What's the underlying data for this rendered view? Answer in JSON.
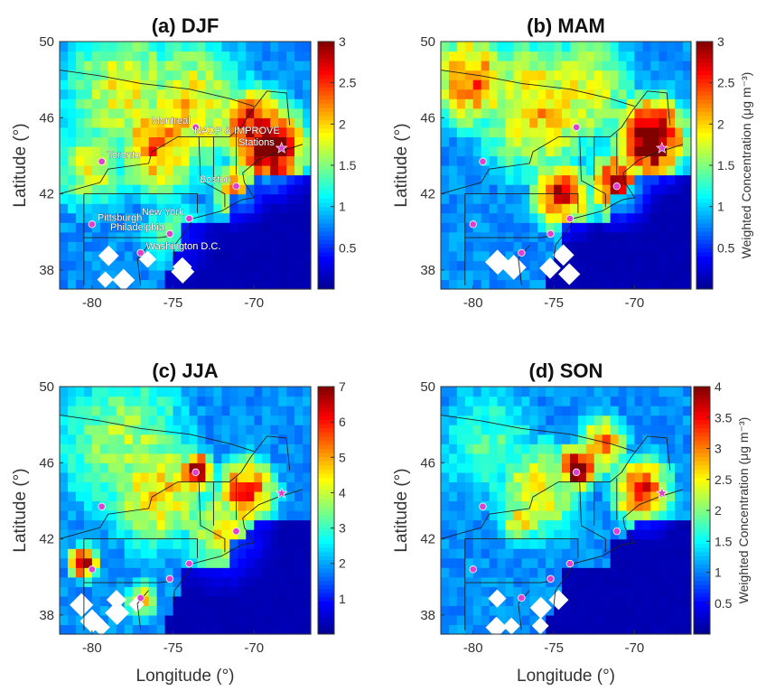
{
  "chart_data": [
    {
      "type": "heatmap",
      "title": "(a) DJF",
      "xlabel": "",
      "ylabel": "Latitude (°)",
      "x_ticks": [
        -80,
        -75,
        -70
      ],
      "y_ticks": [
        38,
        42,
        46,
        50
      ],
      "xlim": [
        -82,
        -66.5
      ],
      "ylim": [
        37,
        50
      ],
      "colorbar": {
        "ticks": [
          0.5,
          1,
          1.5,
          2,
          2.5,
          3
        ],
        "range": [
          0,
          3
        ],
        "label": ""
      },
      "hotspots": [
        {
          "lon": -69,
          "lat": 44.5,
          "value": 3.0,
          "spread": 1.6
        },
        {
          "lon": -70,
          "lat": 45.5,
          "value": 2.4,
          "spread": 1.6
        },
        {
          "lon": -76,
          "lat": 44.5,
          "value": 2.0,
          "spread": 2.0
        },
        {
          "lon": -74,
          "lat": 46.5,
          "value": 1.6,
          "spread": 3.0
        },
        {
          "lon": -78,
          "lat": 47.5,
          "value": 1.5,
          "spread": 3.0
        },
        {
          "lon": -80,
          "lat": 43.5,
          "value": 1.4,
          "spread": 2.0
        },
        {
          "lon": -71,
          "lat": 42.3,
          "value": 1.9,
          "spread": 1.2
        },
        {
          "lon": -75,
          "lat": 40,
          "value": 1.0,
          "spread": 1.8
        }
      ],
      "sites": [
        {
          "name": "Toronto",
          "lon": -79.4,
          "lat": 43.7
        },
        {
          "name": "Montreal",
          "lon": -73.6,
          "lat": 45.5
        },
        {
          "name": "Boston",
          "lon": -71.1,
          "lat": 42.4
        },
        {
          "name": "New York",
          "lon": -74.0,
          "lat": 40.7
        },
        {
          "name": "Pittsburgh",
          "lon": -80.0,
          "lat": 40.4
        },
        {
          "name": "Philadelphia",
          "lon": -75.2,
          "lat": 39.9
        },
        {
          "name": "Washington D.C.",
          "lon": -77.0,
          "lat": 38.9
        }
      ],
      "station": {
        "name": "NADP & IMPROVE Stations",
        "lon": -68.3,
        "lat": 44.4
      }
    },
    {
      "type": "heatmap",
      "title": "(b) MAM",
      "xlabel": "",
      "ylabel": "Latitude (°)",
      "x_ticks": [
        -80,
        -75,
        -70
      ],
      "y_ticks": [
        38,
        42,
        46,
        50
      ],
      "xlim": [
        -82,
        -66.5
      ],
      "ylim": [
        37,
        50
      ],
      "colorbar": {
        "ticks": [
          0.5,
          1,
          1.5,
          2,
          2.5,
          3
        ],
        "range": [
          0,
          3
        ],
        "label": "Weighted Concentration (μg m⁻³)"
      },
      "hotspots": [
        {
          "lon": -69,
          "lat": 45,
          "value": 3.0,
          "spread": 1.6
        },
        {
          "lon": -71,
          "lat": 42.5,
          "value": 2.6,
          "spread": 1.3
        },
        {
          "lon": -74.5,
          "lat": 42,
          "value": 2.3,
          "spread": 1.4
        },
        {
          "lon": -76,
          "lat": 46.5,
          "value": 1.7,
          "spread": 3.0
        },
        {
          "lon": -80,
          "lat": 48,
          "value": 2.0,
          "spread": 2.0
        },
        {
          "lon": -73,
          "lat": 47.5,
          "value": 1.5,
          "spread": 2.5
        }
      ],
      "sites": [
        {
          "name": "",
          "lon": -79.4,
          "lat": 43.7
        },
        {
          "name": "",
          "lon": -73.6,
          "lat": 45.5
        },
        {
          "name": "",
          "lon": -71.1,
          "lat": 42.4
        },
        {
          "name": "",
          "lon": -74.0,
          "lat": 40.7
        },
        {
          "name": "",
          "lon": -80.0,
          "lat": 40.4
        },
        {
          "name": "",
          "lon": -75.2,
          "lat": 39.9
        },
        {
          "name": "",
          "lon": -77.0,
          "lat": 38.9
        }
      ],
      "station": {
        "name": "",
        "lon": -68.3,
        "lat": 44.4
      }
    },
    {
      "type": "heatmap",
      "title": "(c) JJA",
      "xlabel": "Longitude (°)",
      "ylabel": "Latitude (°)",
      "x_ticks": [
        -80,
        -75,
        -70
      ],
      "y_ticks": [
        38,
        42,
        46,
        50
      ],
      "xlim": [
        -82,
        -66.5
      ],
      "ylim": [
        37,
        50
      ],
      "colorbar": {
        "ticks": [
          1,
          2,
          3,
          4,
          5,
          6,
          7
        ],
        "range": [
          0,
          7
        ],
        "label": ""
      },
      "hotspots": [
        {
          "lon": -73.5,
          "lat": 45.5,
          "value": 6.5,
          "spread": 0.8
        },
        {
          "lon": -70.5,
          "lat": 44.5,
          "value": 5.2,
          "spread": 1.4
        },
        {
          "lon": -80.5,
          "lat": 40.8,
          "value": 5.8,
          "spread": 0.7
        },
        {
          "lon": -76,
          "lat": 44.5,
          "value": 3.8,
          "spread": 2.5
        },
        {
          "lon": -72,
          "lat": 42.5,
          "value": 3.5,
          "spread": 2.0
        },
        {
          "lon": -77,
          "lat": 38.8,
          "value": 4.0,
          "spread": 0.8
        },
        {
          "lon": -78,
          "lat": 47,
          "value": 3.0,
          "spread": 3.5
        }
      ],
      "sites": [
        {
          "name": "",
          "lon": -79.4,
          "lat": 43.7
        },
        {
          "name": "",
          "lon": -73.6,
          "lat": 45.5
        },
        {
          "name": "",
          "lon": -71.1,
          "lat": 42.4
        },
        {
          "name": "",
          "lon": -74.0,
          "lat": 40.7
        },
        {
          "name": "",
          "lon": -80.0,
          "lat": 40.4
        },
        {
          "name": "",
          "lon": -75.2,
          "lat": 39.9
        },
        {
          "name": "",
          "lon": -77.0,
          "lat": 38.9
        }
      ],
      "station": {
        "name": "",
        "lon": -68.3,
        "lat": 44.4
      }
    },
    {
      "type": "heatmap",
      "title": "(d) SON",
      "xlabel": "Longitude (°)",
      "ylabel": "Latitude (°)",
      "x_ticks": [
        -80,
        -75,
        -70
      ],
      "y_ticks": [
        38,
        42,
        46,
        50
      ],
      "xlim": [
        -82,
        -66.5
      ],
      "ylim": [
        37,
        50
      ],
      "colorbar": {
        "ticks": [
          0.5,
          1,
          1.5,
          2,
          2.5,
          3,
          3.5,
          4
        ],
        "range": [
          0,
          4
        ],
        "label": "Weighted Concentration (μg m⁻³)"
      },
      "hotspots": [
        {
          "lon": -73.5,
          "lat": 45.8,
          "value": 3.8,
          "spread": 0.9
        },
        {
          "lon": -69.5,
          "lat": 44.5,
          "value": 3.0,
          "spread": 1.4
        },
        {
          "lon": -72,
          "lat": 47,
          "value": 2.6,
          "spread": 1.2
        },
        {
          "lon": -76,
          "lat": 44.5,
          "value": 2.0,
          "spread": 2.2
        },
        {
          "lon": -77,
          "lat": 43,
          "value": 2.2,
          "spread": 1.0
        },
        {
          "lon": -79,
          "lat": 47,
          "value": 1.3,
          "spread": 3.0
        }
      ],
      "sites": [
        {
          "name": "",
          "lon": -79.4,
          "lat": 43.7
        },
        {
          "name": "",
          "lon": -73.6,
          "lat": 45.5
        },
        {
          "name": "",
          "lon": -71.1,
          "lat": 42.4
        },
        {
          "name": "",
          "lon": -74.0,
          "lat": 40.7
        },
        {
          "name": "",
          "lon": -80.0,
          "lat": 40.4
        },
        {
          "name": "",
          "lon": -75.2,
          "lat": 39.9
        },
        {
          "name": "",
          "lon": -77.0,
          "lat": 38.9
        }
      ],
      "station": {
        "name": "",
        "lon": -68.3,
        "lat": 44.4
      }
    }
  ],
  "colors": {
    "site_marker": "#e040d0",
    "station_marker": "#e040d0",
    "border": "#222222"
  }
}
